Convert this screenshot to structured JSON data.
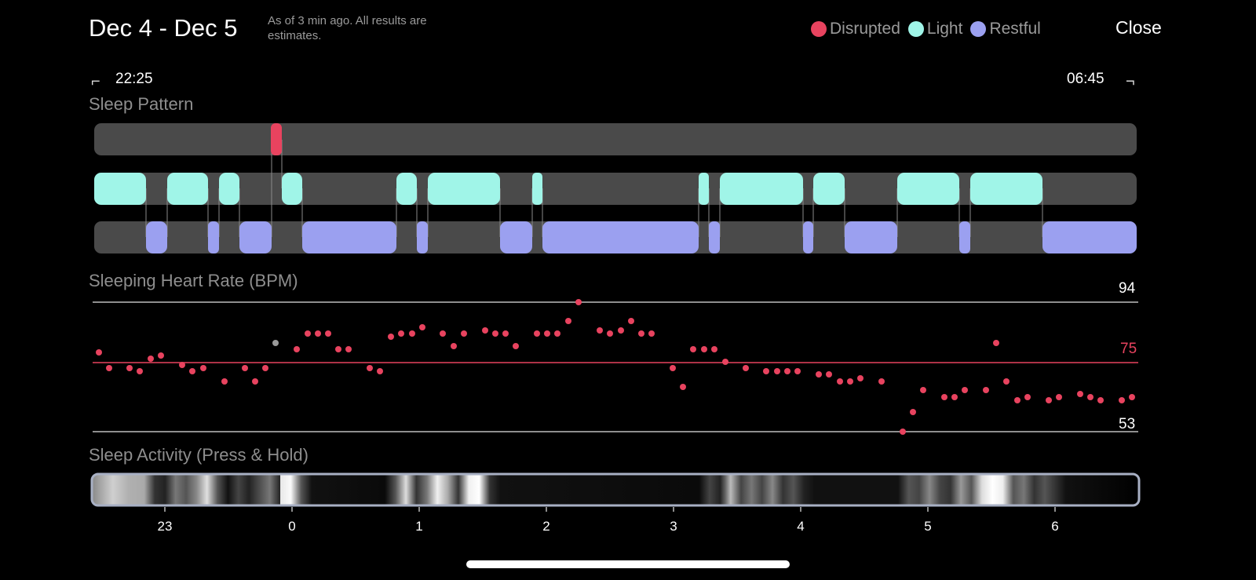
{
  "header": {
    "date_range": "Dec 4 - Dec 5",
    "subtitle": "As of 3 min ago. All results are estimates.",
    "close_label": "Close"
  },
  "legend": [
    {
      "label": "Disrupted",
      "color": "#e8435f"
    },
    {
      "label": "Light",
      "color": "#a0f5e8"
    },
    {
      "label": "Restful",
      "color": "#9ba0f0"
    }
  ],
  "time_range": {
    "start": "22:25",
    "end": "06:45"
  },
  "sections": {
    "sleep_pattern": "Sleep Pattern",
    "heart_rate": "Sleeping Heart Rate (BPM)",
    "activity": "Sleep Activity (Press & Hold)"
  },
  "heart_rate_axis": {
    "max": "94",
    "avg": "75",
    "min": "53"
  },
  "time_axis": [
    "23",
    "0",
    "1",
    "2",
    "3",
    "4",
    "5",
    "6"
  ],
  "colors": {
    "disrupted": "#e8435f",
    "light": "#a0f5e8",
    "restful": "#9ba0f0",
    "track": "#4a4a4a"
  }
}
